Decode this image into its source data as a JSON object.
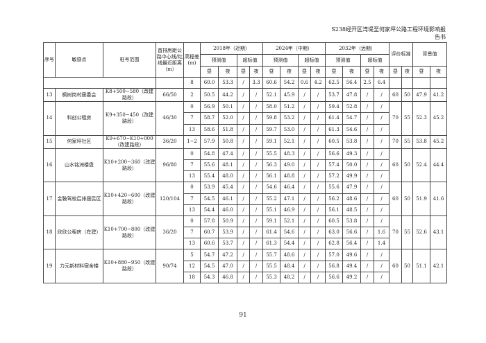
{
  "header": {
    "title": "S238经开区湾堤至何家坪公路工程环境影响报告书"
  },
  "table": {
    "headers": {
      "no": "序号",
      "point": "敏感点",
      "range": "桩号范围",
      "distance": "首排房距公路中心线/红线最近距离（m）",
      "height": "高程差(m)",
      "y2018": "2018年（近期）",
      "y2024": "2024年（中期）",
      "y2032": "2032年（远期）",
      "predicted": "预测值",
      "exceed": "超标值",
      "standard": "评价标准",
      "background": "背景值",
      "day": "昼",
      "night": "夜"
    },
    "groups": [
      {
        "no": "",
        "name": "",
        "range": "",
        "distance": "",
        "rows": [
          {
            "h": "8",
            "v": [
              "60.0",
              "53.3",
              "/",
              "3.3",
              "60.6",
              "54.2",
              "0.6",
              "4.2",
              "62.5",
              "56.4",
              "2.5",
              "6.4"
            ]
          }
        ],
        "std": [
          "",
          ""
        ],
        "bg": [
          "",
          ""
        ]
      },
      {
        "no": "13",
        "name": "枫树岗村居委会",
        "range": "K8+500~580（改建路段）",
        "distance": "66/50",
        "rows": [
          {
            "h": "2",
            "v": [
              "50.5",
              "44.2",
              "/",
              "/",
              "52.1",
              "45.9",
              "/",
              "/",
              "53.7",
              "47.8",
              "/",
              "/"
            ]
          }
        ],
        "std": [
          "60",
          "50"
        ],
        "bg": [
          "47.9",
          "41.2"
        ]
      },
      {
        "no": "14",
        "name": "科创公租房",
        "range": "K9+350~450（改建路段）",
        "distance": "46/30",
        "rows": [
          {
            "h": "0",
            "v": [
              "56.9",
              "50.1",
              "/",
              "/",
              "58.0",
              "51.2",
              "/",
              "/",
              "59.4",
              "52.8",
              "/",
              "/"
            ]
          },
          {
            "h": "7",
            "v": [
              "58.7",
              "52.0",
              "/",
              "/",
              "59.8",
              "53.2",
              "/",
              "/",
              "61.4",
              "54.7",
              "/",
              "/"
            ]
          },
          {
            "h": "13",
            "v": [
              "58.6",
              "51.8",
              "/",
              "/",
              "59.7",
              "53.0",
              "/",
              "/",
              "61.3",
              "54.6",
              "/",
              "/"
            ]
          }
        ],
        "std": [
          "70",
          "55"
        ],
        "bg": [
          "52.3",
          "45.2"
        ]
      },
      {
        "no": "15",
        "name": "何家坪社区",
        "range": "K9+670~K10+000（改建路段）",
        "distance": "36/20",
        "rows": [
          {
            "h": "1~2",
            "v": [
              "57.9",
              "50.8",
              "/",
              "/",
              "59.1",
              "52.1",
              "/",
              "/",
              "60.5",
              "53.8",
              "/",
              "/"
            ]
          }
        ],
        "std": [
          "70",
          "55"
        ],
        "bg": [
          "53.8",
          "45.2"
        ]
      },
      {
        "no": "16",
        "name": "山水铭洲楼盘",
        "range": "K10+200~360（改建路段）",
        "distance": "96/80",
        "rows": [
          {
            "h": "0",
            "v": [
              "54.8",
              "47.4",
              "/",
              "/",
              "55.5",
              "48.3",
              "/",
              "/",
              "56.6",
              "49.3",
              "/",
              "/"
            ]
          },
          {
            "h": "7",
            "v": [
              "55.6",
              "48.1",
              "/",
              "/",
              "56.3",
              "49.0",
              "/",
              "/",
              "57.4",
              "50.0",
              "/",
              "/"
            ]
          },
          {
            "h": "13",
            "v": [
              "55.4",
              "48.0",
              "/",
              "/",
              "56.1",
              "48.8",
              "/",
              "/",
              "57.2",
              "49.9",
              "/",
              "/"
            ]
          }
        ],
        "std": [
          "60",
          "50"
        ],
        "bg": [
          "52.4",
          "44.4"
        ]
      },
      {
        "no": "17",
        "name": "金鞍驾校后排居民区",
        "range": "K10+420~600（改建路段）",
        "distance": "120/104",
        "rows": [
          {
            "h": "0",
            "v": [
              "53.9",
              "45.4",
              "/",
              "/",
              "54.6",
              "46.4",
              "/",
              "/",
              "55.6",
              "47.9",
              "/",
              "/"
            ]
          },
          {
            "h": "7",
            "v": [
              "54.5",
              "46.1",
              "/",
              "/",
              "55.2",
              "47.1",
              "/",
              "/",
              "56.2",
              "48.6",
              "/",
              "/"
            ]
          },
          {
            "h": "13",
            "v": [
              "54.4",
              "46.0",
              "/",
              "/",
              "55.1",
              "46.9",
              "/",
              "/",
              "56.1",
              "48.5",
              "/",
              "/"
            ]
          }
        ],
        "std": [
          "60",
          "50"
        ],
        "bg": [
          "51.9",
          "41.6"
        ]
      },
      {
        "no": "18",
        "name": "欣欣公租房（在建）",
        "range": "K10+700~800（改建路段）",
        "distance": "36/20",
        "rows": [
          {
            "h": "0",
            "v": [
              "57.8",
              "50.9",
              "/",
              "/",
              "59.1",
              "52.1",
              "/",
              "/",
              "60.5",
              "53.8",
              "/",
              "/"
            ]
          },
          {
            "h": "7",
            "v": [
              "60.7",
              "53.9",
              "/",
              "/",
              "61.4",
              "54.6",
              "/",
              "/",
              "63.0",
              "56.6",
              "/",
              "1.6"
            ]
          },
          {
            "h": "13",
            "v": [
              "60.6",
              "53.7",
              "/",
              "/",
              "61.3",
              "54.4",
              "/",
              "/",
              "62.8",
              "56.4",
              "/",
              "1.4"
            ]
          }
        ],
        "std": [
          "70",
          "55"
        ],
        "bg": [
          "52.6",
          "43.1"
        ]
      },
      {
        "no": "19",
        "name": "力元新材料宿舍楼",
        "range": "K10+880~950（改建路段）",
        "distance": "90/74",
        "rows": [
          {
            "h": "5",
            "v": [
              "54.7",
              "47.2",
              "/",
              "/",
              "55.7",
              "48.6",
              "/",
              "/",
              "57.0",
              "49.6",
              "/",
              "/"
            ]
          },
          {
            "h": "12",
            "v": [
              "54.5",
              "47.0",
              "/",
              "/",
              "55.5",
              "48.4",
              "/",
              "/",
              "56.8",
              "49.4",
              "/",
              "/"
            ]
          },
          {
            "h": "18",
            "v": [
              "54.3",
              "46.8",
              "/",
              "/",
              "55.3",
              "48.2",
              "/",
              "/",
              "56.6",
              "49.2",
              "/",
              "/"
            ]
          }
        ],
        "std": [
          "60",
          "50"
        ],
        "bg": [
          "51.1",
          "42.1"
        ]
      }
    ]
  },
  "footer": {
    "page_number": "91"
  }
}
